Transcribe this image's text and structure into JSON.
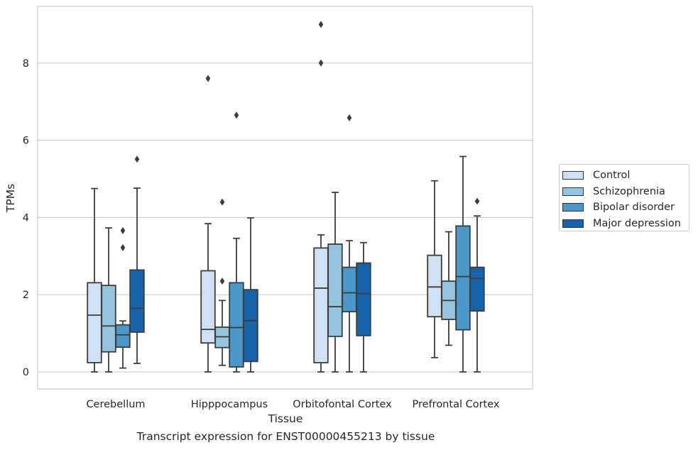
{
  "chart_data": {
    "type": "box",
    "xlabel": "Tissue",
    "ylabel": "TPMs",
    "ylim": [
      -0.45,
      9.65
    ],
    "yticks": [
      0,
      2,
      4,
      6,
      8
    ],
    "grid": "horizontal",
    "legend_position": "right",
    "categories": [
      "Cerebellum",
      "Hipppocampus",
      "Orbitofontal Cortex",
      "Prefrontal Cortex"
    ],
    "series": [
      {
        "name": "Control",
        "color": "#d0e1f2",
        "boxes": [
          {
            "whisker_low": 0.0,
            "q1": 0.24,
            "median": 1.47,
            "q3": 2.31,
            "whisker_high": 4.75,
            "outliers": []
          },
          {
            "whisker_low": 0.0,
            "q1": 0.75,
            "median": 1.1,
            "q3": 2.62,
            "whisker_high": 3.84,
            "outliers": [
              7.6
            ]
          },
          {
            "whisker_low": 0.0,
            "q1": 0.24,
            "median": 2.17,
            "q3": 3.21,
            "whisker_high": 3.55,
            "outliers": [
              8.0,
              9.0
            ]
          },
          {
            "whisker_low": 0.37,
            "q1": 1.43,
            "median": 2.2,
            "q3": 3.02,
            "whisker_high": 4.95,
            "outliers": []
          }
        ]
      },
      {
        "name": "Schizophrenia",
        "color": "#94c4df",
        "boxes": [
          {
            "whisker_low": 0.0,
            "q1": 0.52,
            "median": 1.19,
            "q3": 2.24,
            "whisker_high": 3.73,
            "outliers": []
          },
          {
            "whisker_low": 0.17,
            "q1": 0.63,
            "median": 0.91,
            "q3": 1.16,
            "whisker_high": 1.85,
            "outliers": [
              2.35,
              4.4
            ]
          },
          {
            "whisker_low": 0.0,
            "q1": 0.92,
            "median": 1.69,
            "q3": 3.31,
            "whisker_high": 4.65,
            "outliers": []
          },
          {
            "whisker_low": 0.69,
            "q1": 1.36,
            "median": 1.85,
            "q3": 2.35,
            "whisker_high": 3.63,
            "outliers": []
          }
        ]
      },
      {
        "name": "Bipolar disorder",
        "color": "#4a98c9",
        "boxes": [
          {
            "whisker_low": 0.1,
            "q1": 0.64,
            "median": 0.96,
            "q3": 1.22,
            "whisker_high": 1.32,
            "outliers": [
              3.22,
              3.66
            ]
          },
          {
            "whisker_low": 0.0,
            "q1": 0.13,
            "median": 1.15,
            "q3": 2.31,
            "whisker_high": 3.46,
            "outliers": [
              6.65
            ]
          },
          {
            "whisker_low": 0.0,
            "q1": 1.56,
            "median": 2.05,
            "q3": 2.71,
            "whisker_high": 3.4,
            "outliers": [
              6.58
            ]
          },
          {
            "whisker_low": 0.0,
            "q1": 1.09,
            "median": 2.47,
            "q3": 3.78,
            "whisker_high": 5.58,
            "outliers": []
          }
        ]
      },
      {
        "name": "Major depression",
        "color": "#1764ab",
        "boxes": [
          {
            "whisker_low": 0.22,
            "q1": 1.03,
            "median": 1.65,
            "q3": 2.64,
            "whisker_high": 4.76,
            "outliers": [
              5.51
            ]
          },
          {
            "whisker_low": 0.0,
            "q1": 0.27,
            "median": 1.33,
            "q3": 2.13,
            "whisker_high": 3.99,
            "outliers": []
          },
          {
            "whisker_low": 0.0,
            "q1": 0.94,
            "median": 2.03,
            "q3": 2.82,
            "whisker_high": 3.35,
            "outliers": []
          },
          {
            "whisker_low": 0.0,
            "q1": 1.58,
            "median": 2.42,
            "q3": 2.71,
            "whisker_high": 4.04,
            "outliers": [
              4.42
            ]
          }
        ]
      }
    ]
  },
  "caption": "Transcript expression for ENST00000455213 by tissue"
}
